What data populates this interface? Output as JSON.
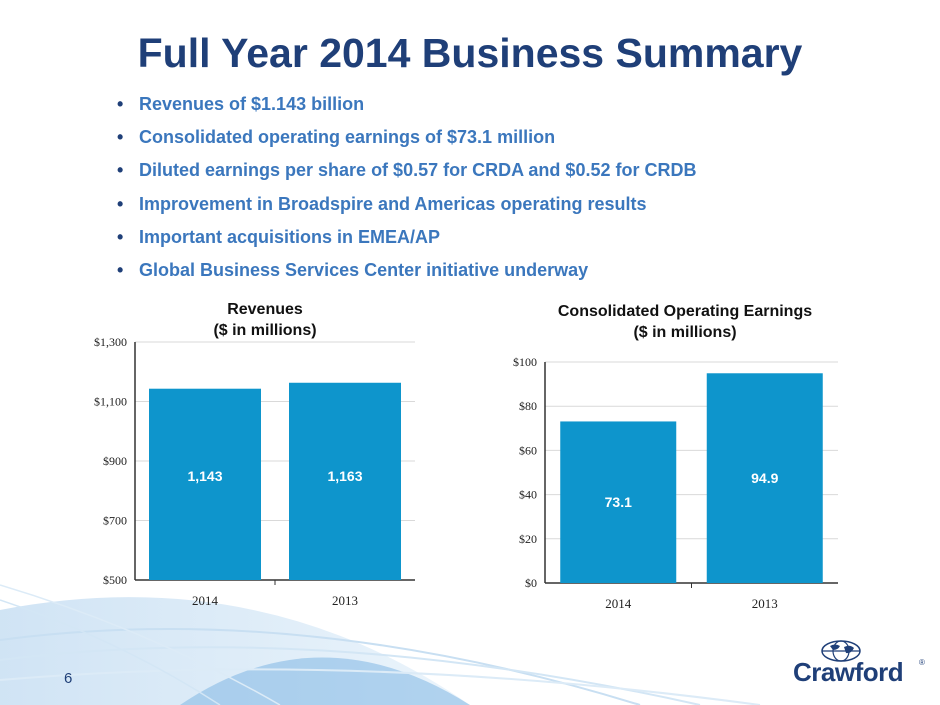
{
  "slide": {
    "title": "Full Year 2014 Business Summary",
    "bullets": [
      "Revenues of $1.143 billion",
      "Consolidated operating earnings of $73.1 million",
      "Diluted earnings per share of $0.57 for CRDA and $0.52 for CRDB",
      "Improvement in Broadspire and Americas operating results",
      "Important acquisitions in EMEA/AP",
      "Global Business Services Center initiative underway"
    ],
    "bullet_glyph": "•",
    "page_number": "6",
    "logo": {
      "text": "Crawford",
      "reg": "®"
    }
  },
  "colors": {
    "title": "#1f3f78",
    "bullet": "#3b77bd",
    "bar": "#0e95cc",
    "axis": "#333333"
  },
  "chart_data": [
    {
      "type": "bar",
      "title": "Revenues",
      "subtitle": "($ in millions)",
      "categories": [
        "2014",
        "2013"
      ],
      "values": [
        1143,
        1163
      ],
      "data_labels": [
        "1,143",
        "1,163"
      ],
      "ylim": [
        500,
        1300
      ],
      "yticks": [
        500,
        700,
        900,
        1100,
        1300
      ],
      "ytick_labels": [
        "$500",
        "$700",
        "$900",
        "$1,100",
        "$1,300"
      ],
      "xlabel": "",
      "ylabel": "",
      "grid": true
    },
    {
      "type": "bar",
      "title": "Consolidated Operating Earnings",
      "subtitle": "($ in millions)",
      "categories": [
        "2014",
        "2013"
      ],
      "values": [
        73.1,
        94.9
      ],
      "data_labels": [
        "73.1",
        "94.9"
      ],
      "ylim": [
        0,
        100
      ],
      "yticks": [
        0,
        20,
        40,
        60,
        80,
        100
      ],
      "ytick_labels": [
        "$0",
        "$20",
        "$40",
        "$60",
        "$80",
        "$100"
      ],
      "xlabel": "",
      "ylabel": "",
      "grid": true
    }
  ]
}
